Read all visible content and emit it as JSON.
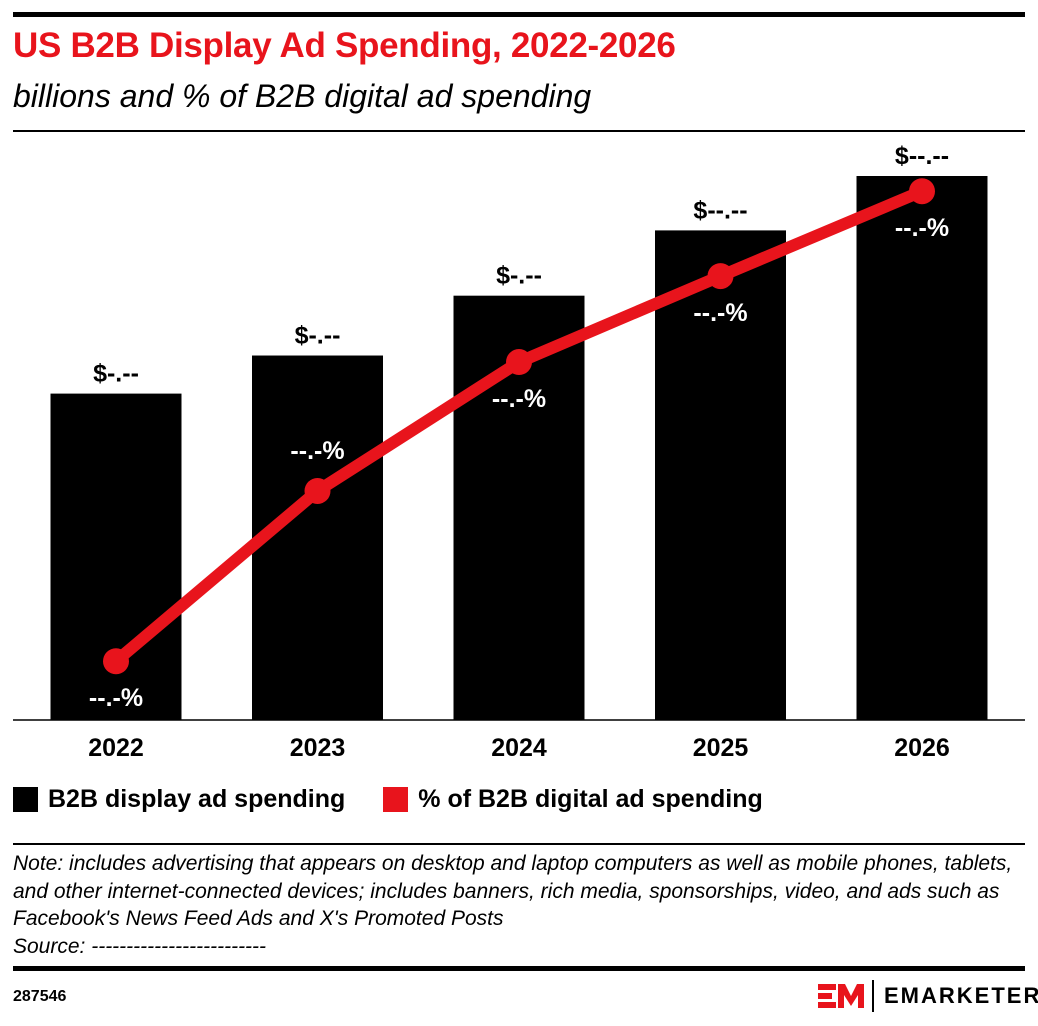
{
  "header": {
    "title": "US B2B Display Ad Spending, 2022-2026",
    "subtitle": "billions and % of B2B digital ad spending"
  },
  "chart_data": {
    "type": "bar+line",
    "title": "US B2B Display Ad Spending, 2022-2026",
    "subtitle": "billions and % of B2B digital ad spending",
    "categories": [
      "2022",
      "2023",
      "2024",
      "2025",
      "2026"
    ],
    "series": [
      {
        "name": "B2B display ad spending",
        "type": "bar",
        "color": "#000000",
        "data_labels": [
          "$-.--",
          "$-.--",
          "$-.--",
          "$--.--",
          "$--.--"
        ],
        "relative_values": [
          0.6,
          0.67,
          0.78,
          0.9,
          1.0
        ]
      },
      {
        "name": "% of B2B digital ad spending",
        "type": "line",
        "color": "#e8141c",
        "data_labels": [
          "--.-%",
          "--.-%",
          "--.-%",
          "--.-%",
          "--.-%"
        ],
        "relative_values": [
          0.108,
          0.421,
          0.658,
          0.816,
          0.972
        ]
      }
    ],
    "grid": false,
    "legend": "bottom-left",
    "yaxis_visible": false
  },
  "legend": {
    "items": [
      {
        "label": "B2B display ad spending",
        "color": "#000000"
      },
      {
        "label": "% of B2B digital ad spending",
        "color": "#e8141c"
      }
    ]
  },
  "footer": {
    "note": "Note: includes advertising that appears on desktop and laptop computers as well as mobile phones, tablets, and other internet-connected devices; includes banners, rich media, sponsorships, video, and ads such as Facebook's News Feed Ads and X's Promoted Posts",
    "source": "Source: -------------------------",
    "chart_id": "287546",
    "brand": "EMARKETER"
  }
}
